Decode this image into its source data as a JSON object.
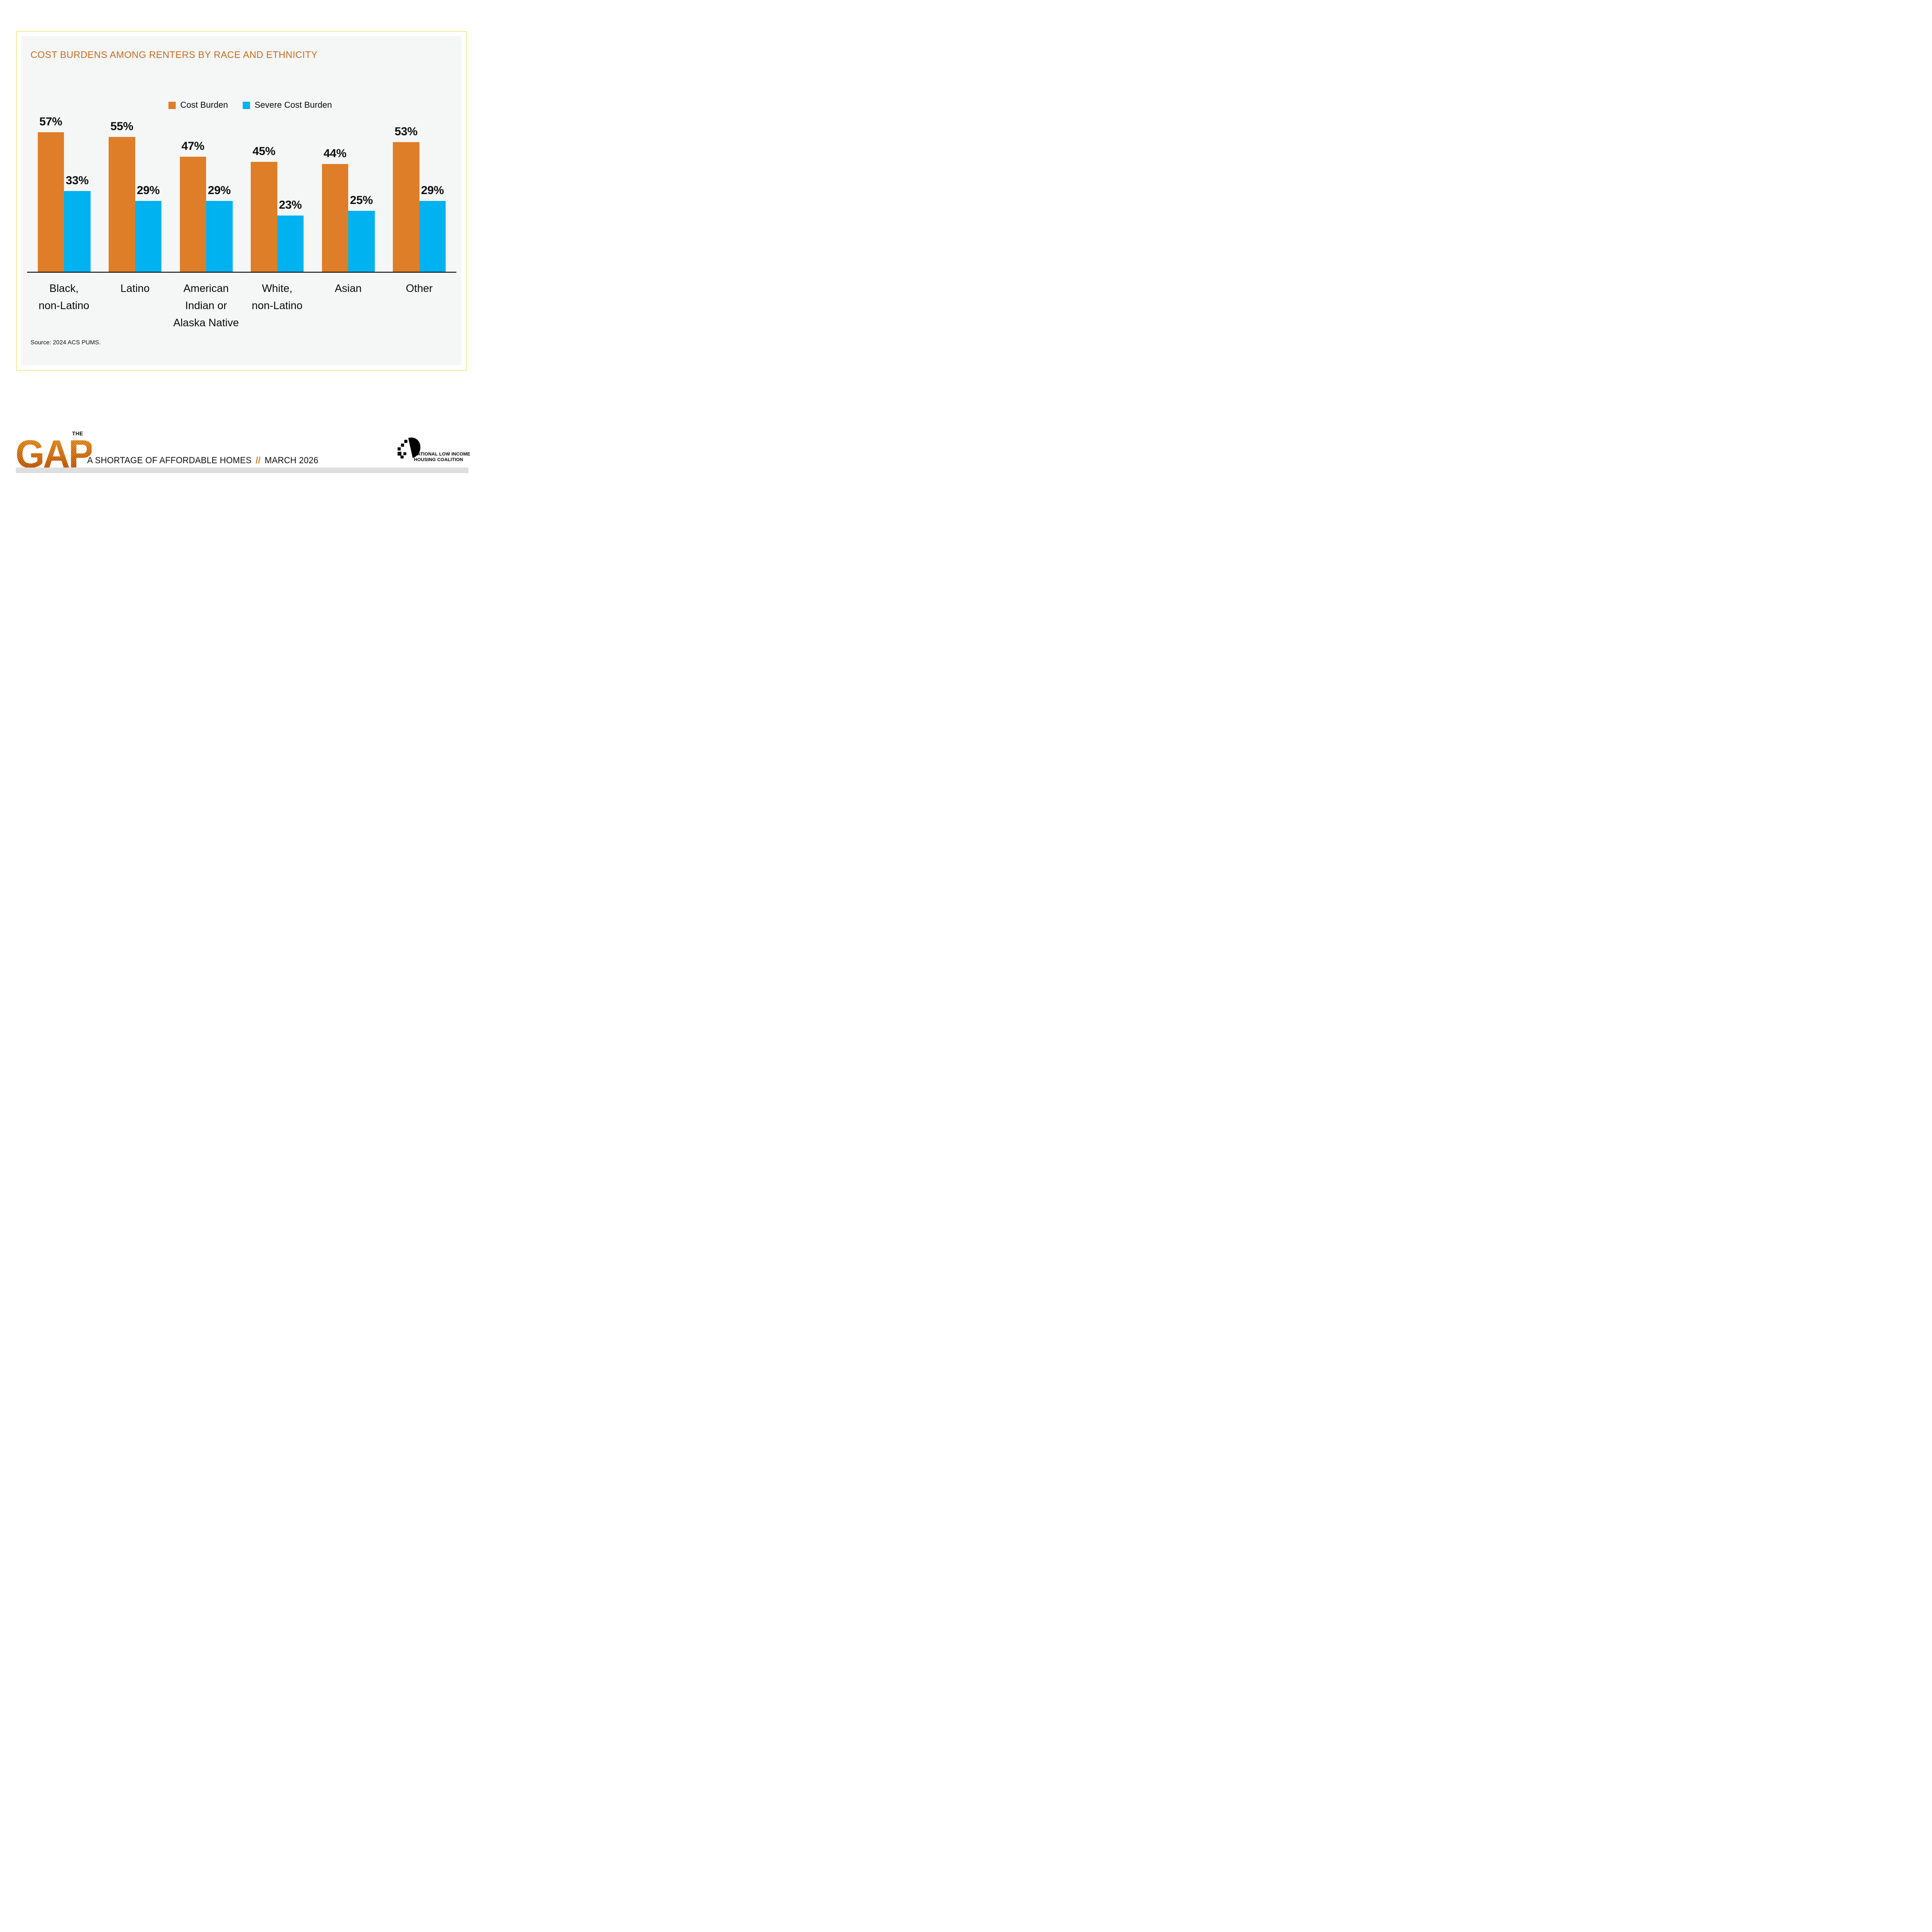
{
  "panel": {
    "title": "COST BURDENS AMONG RENTERS BY RACE AND ETHNICITY",
    "source": "Source: 2024 ACS PUMS."
  },
  "chart_data": {
    "type": "bar",
    "title": "COST BURDENS AMONG RENTERS BY RACE AND ETHNICITY",
    "categories": [
      "Black, non-Latino",
      "Latino",
      "American Indian or Alaska Native",
      "White, non-Latino",
      "Asian",
      "Other"
    ],
    "category_label_lines": [
      [
        "Black,",
        "non-Latino"
      ],
      [
        "Latino"
      ],
      [
        "American",
        "Indian or",
        "Alaska Native"
      ],
      [
        "White,",
        "non-Latino"
      ],
      [
        "Asian"
      ],
      [
        "Other"
      ]
    ],
    "series": [
      {
        "name": "Cost Burden",
        "color": "#DE7E28",
        "values": [
          57,
          55,
          47,
          45,
          44,
          53
        ]
      },
      {
        "name": "Severe Cost Burden",
        "color": "#00B2EF",
        "values": [
          33,
          29,
          29,
          23,
          25,
          29
        ]
      }
    ],
    "value_suffix": "%",
    "value_labels": true,
    "xlabel": "",
    "ylabel": "",
    "ylim": [
      0,
      60
    ],
    "grid": false,
    "legend_position": "top-center"
  },
  "footer": {
    "logo_the": "THE",
    "logo_gap": "GAP",
    "tagline_text": "A SHORTAGE OF AFFORDABLE HOMES",
    "tagline_sep": "//",
    "tagline_date": "MARCH 2026",
    "org_line1": "NATIONAL LOW INCOME",
    "org_line2": "HOUSING COALITION"
  },
  "colors": {
    "cost_burden": "#DE7E28",
    "severe_cost_burden": "#00B2EF",
    "title_orange": "#CA6B1E",
    "frame_yellow": "#E7DB3C",
    "panel_gray": "#F5F6F6",
    "footer_strip_gray": "#DEDEDE",
    "slash_orange": "#E07C22"
  }
}
